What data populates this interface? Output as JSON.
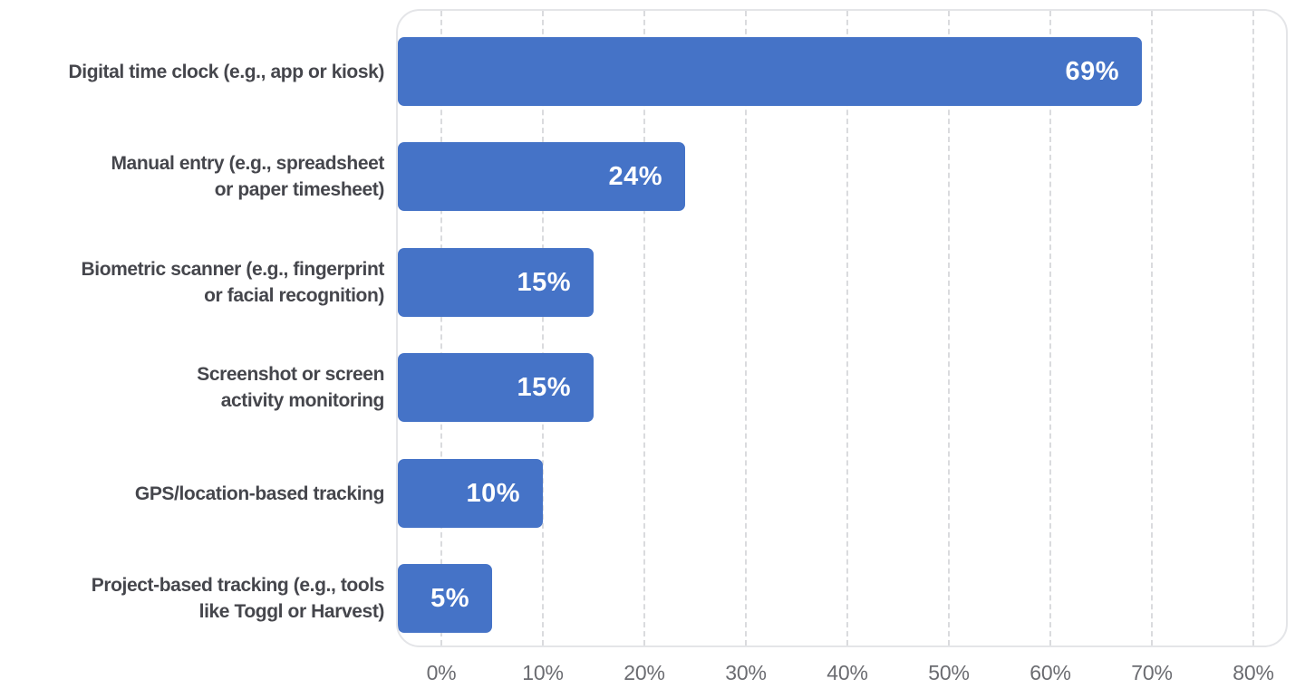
{
  "chart_data": {
    "type": "bar",
    "orientation": "horizontal",
    "title": "",
    "xlabel": "",
    "ylabel": "",
    "categories": [
      "Digital time clock (e.g., app or kiosk)",
      "Manual entry (e.g., spreadsheet or paper timesheet)",
      "Biometric scanner (e.g., fingerprint or facial recognition)",
      "Screenshot or screen activity monitoring",
      "GPS/location-based tracking",
      "Project-based tracking (e.g., tools like Toggl or Harvest)"
    ],
    "category_lines": [
      [
        "Digital time clock (e.g., app or kiosk)"
      ],
      [
        "Manual entry (e.g., spreadsheet",
        "or paper timesheet)"
      ],
      [
        "Biometric scanner (e.g., fingerprint",
        "or facial recognition)"
      ],
      [
        "Screenshot or screen",
        "activity monitoring"
      ],
      [
        "GPS/location-based tracking"
      ],
      [
        "Project-based tracking (e.g., tools",
        "like Toggl or Harvest)"
      ]
    ],
    "values": [
      69,
      24,
      15,
      15,
      10,
      5
    ],
    "data_labels": [
      "69%",
      "24%",
      "15%",
      "15%",
      "10%",
      "5%"
    ],
    "x_ticks": [
      "0%",
      "10%",
      "20%",
      "30%",
      "40%",
      "50%",
      "60%",
      "70%",
      "80%"
    ],
    "xlim": [
      0,
      80
    ],
    "grid": {
      "vertical": true,
      "horizontal": false,
      "style": "dashed"
    },
    "legend": "none",
    "colors": {
      "bar": "#4573c7",
      "bar_value_label": "#ffffff",
      "category_label": "#45464c",
      "tick_label": "#6b6c71",
      "gridline": "#dadbde",
      "plot_border": "#e4e5e8",
      "background": "#ffffff"
    }
  }
}
